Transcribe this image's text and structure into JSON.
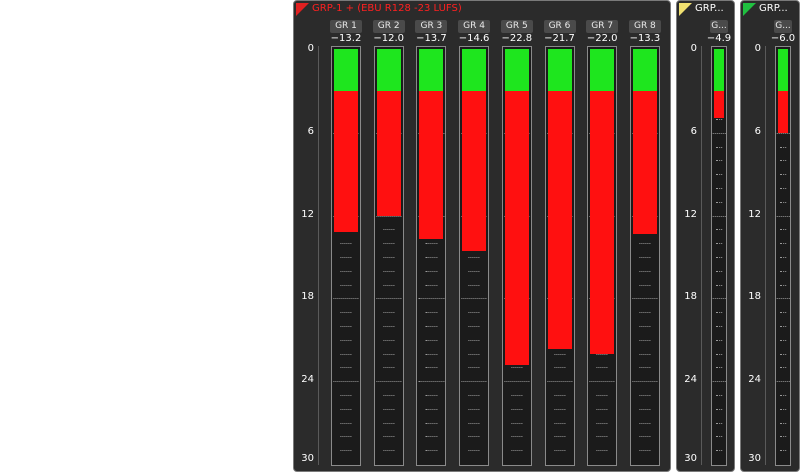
{
  "scale": {
    "min": 0,
    "max": 30,
    "ticks": [
      "0",
      "6",
      "12",
      "18",
      "24",
      "30"
    ]
  },
  "colors": {
    "bar_green": "#1ee61e",
    "bar_red": "#ff1010",
    "background": "#2b2b2b"
  },
  "panels": [
    {
      "title": "GRP-1 + (EBU R128 -23 LUFS)",
      "title_color": "#ff2020",
      "marker_color": "#e02020",
      "channels": [
        {
          "label": "GR 1",
          "value": "−13.2",
          "level": 13.2
        },
        {
          "label": "GR 2",
          "value": "−12.0",
          "level": 12.0
        },
        {
          "label": "GR 3",
          "value": "−13.7",
          "level": 13.7
        },
        {
          "label": "GR 4",
          "value": "−14.6",
          "level": 14.6
        },
        {
          "label": "GR 5",
          "value": "−22.8",
          "level": 22.8
        },
        {
          "label": "GR 6",
          "value": "−21.7",
          "level": 21.7
        },
        {
          "label": "GR 7",
          "value": "−22.0",
          "level": 22.0
        },
        {
          "label": "GR 8",
          "value": "−13.3",
          "level": 13.3
        }
      ]
    },
    {
      "title": "GRP...",
      "title_color": "#ffffff",
      "marker_color": "#f0e070",
      "channels": [
        {
          "label": "G...",
          "value": "−4.9",
          "level": 4.9
        }
      ]
    },
    {
      "title": "GRP...",
      "title_color": "#ffffff",
      "marker_color": "#20c040",
      "channels": [
        {
          "label": "G...",
          "value": "−6.0",
          "level": 6.0
        }
      ]
    }
  ]
}
